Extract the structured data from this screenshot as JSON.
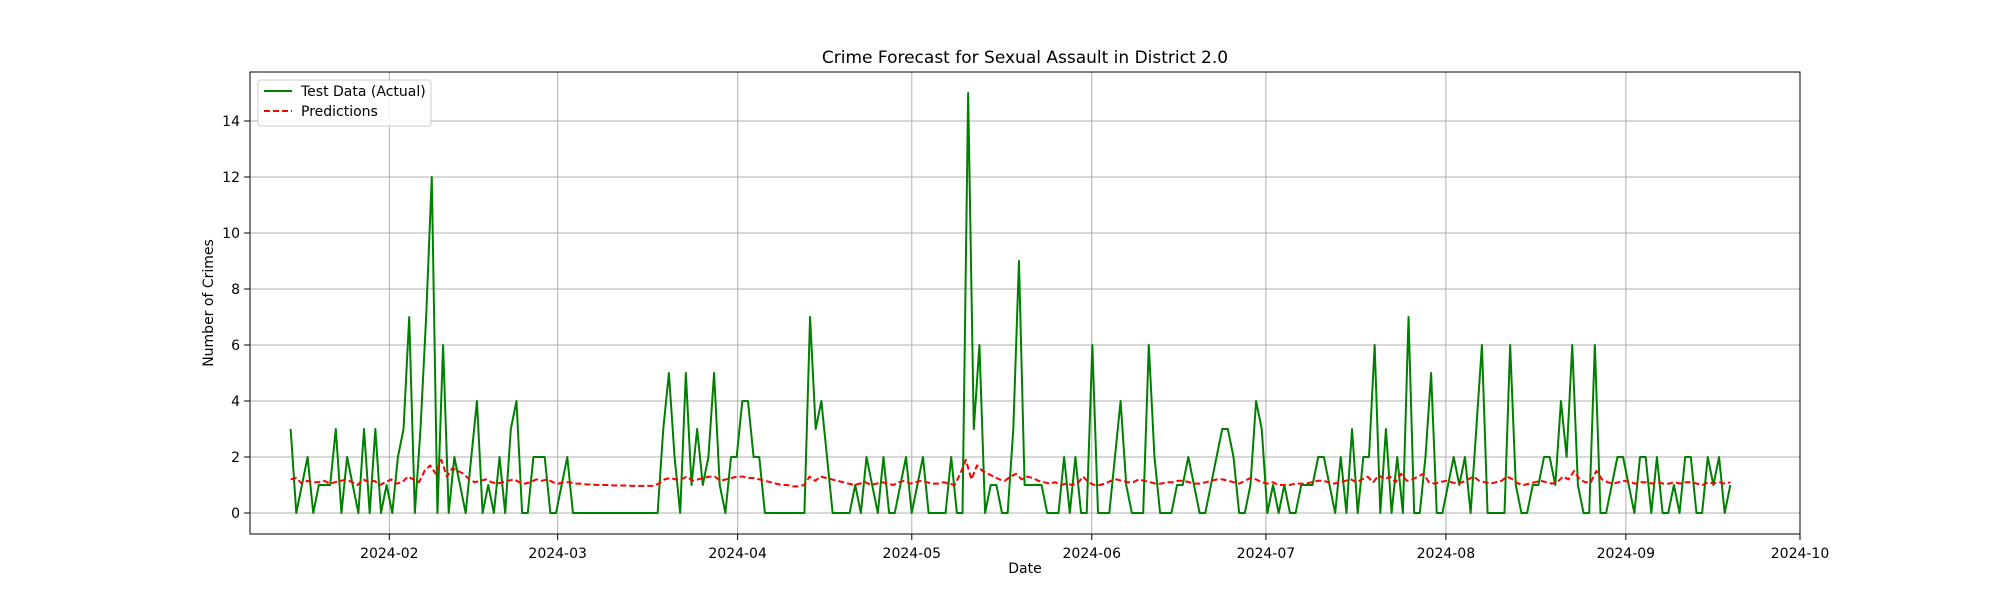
{
  "chart_data": {
    "type": "line",
    "title": "Crime Forecast for Sexual Assault in District 2.0",
    "xlabel": "Date",
    "ylabel": "Number of Crimes",
    "x_start": "2024-01-15",
    "x_end": "2024-09-19",
    "xlim": [
      "2024-01-08",
      "2024-10-01"
    ],
    "ylim": [
      -0.75,
      15.75
    ],
    "x_ticks": [
      "2024-02",
      "2024-03",
      "2024-04",
      "2024-05",
      "2024-06",
      "2024-07",
      "2024-08",
      "2024-09",
      "2024-10"
    ],
    "x_tick_dates": [
      "2024-02-01",
      "2024-03-01",
      "2024-04-01",
      "2024-05-01",
      "2024-06-01",
      "2024-07-01",
      "2024-08-01",
      "2024-09-01",
      "2024-10-01"
    ],
    "y_ticks": [
      0,
      2,
      4,
      6,
      8,
      10,
      12,
      14
    ],
    "grid": true,
    "legend_position": "top-left",
    "series": [
      {
        "name": "Test Data (Actual)",
        "color": "#008000",
        "style": "solid",
        "values": [
          3,
          0,
          1,
          2,
          0,
          1,
          1,
          1,
          3,
          0,
          2,
          1,
          0,
          3,
          0,
          3,
          0,
          1,
          0,
          2,
          3,
          7,
          0,
          3,
          7,
          12,
          0,
          6,
          0,
          2,
          1,
          0,
          2,
          4,
          0,
          1,
          0,
          2,
          0,
          3,
          4,
          0,
          0,
          2,
          2,
          2,
          0,
          0,
          1,
          2,
          0,
          0,
          0,
          0,
          0,
          0,
          0,
          0,
          0,
          0,
          0,
          0,
          0,
          0,
          0,
          0,
          3,
          5,
          2,
          0,
          5,
          1,
          3,
          1,
          2,
          5,
          1,
          0,
          2,
          2,
          4,
          4,
          2,
          2,
          0,
          0,
          0,
          0,
          0,
          0,
          0,
          0,
          7,
          3,
          4,
          2,
          0,
          0,
          0,
          0,
          1,
          0,
          2,
          1,
          0,
          2,
          0,
          0,
          1,
          2,
          0,
          1,
          2,
          0,
          0,
          0,
          0,
          2,
          0,
          0,
          15,
          3,
          6,
          0,
          1,
          1,
          0,
          0,
          3,
          9,
          1,
          1,
          1,
          1,
          0,
          0,
          0,
          2,
          0,
          2,
          0,
          0,
          6,
          0,
          0,
          0,
          2,
          4,
          1,
          0,
          0,
          0,
          6,
          2,
          0,
          0,
          0,
          1,
          1,
          2,
          1,
          0,
          0,
          1,
          2,
          3,
          3,
          2,
          0,
          0,
          1,
          4,
          3,
          0,
          1,
          0,
          1,
          0,
          0,
          1,
          1,
          1,
          2,
          2,
          1,
          0,
          2,
          0,
          3,
          0,
          2,
          2,
          6,
          0,
          3,
          0,
          2,
          0,
          7,
          0,
          0,
          2,
          5,
          0,
          0,
          1,
          2,
          1,
          2,
          0,
          3,
          6,
          0,
          0,
          0,
          0,
          6,
          1,
          0,
          0,
          1,
          1,
          2,
          2,
          1,
          4,
          2,
          6,
          1,
          0,
          0,
          6,
          0,
          0,
          1,
          2,
          2,
          1,
          0,
          2,
          2,
          0,
          2,
          0,
          0,
          1,
          0,
          2,
          2,
          0,
          0,
          2,
          1,
          2,
          0,
          1
        ],
        "predictions_note": ""
      },
      {
        "name": "Predictions",
        "color": "#ff0000",
        "style": "dashed",
        "values": [
          1.2,
          1.25,
          1.05,
          1.15,
          1.1,
          1.1,
          1.15,
          1.05,
          1.1,
          1.15,
          1.2,
          1.1,
          1.0,
          1.2,
          1.1,
          1.15,
          1.0,
          1.1,
          1.2,
          1.05,
          1.1,
          1.3,
          1.2,
          1.1,
          1.5,
          1.7,
          1.4,
          1.9,
          1.3,
          1.6,
          1.5,
          1.4,
          1.2,
          1.1,
          1.15,
          1.2,
          1.1,
          1.05,
          1.1,
          1.15,
          1.2,
          1.1,
          1.05,
          1.1,
          1.2,
          1.15,
          1.2,
          1.1,
          1.05,
          1.1,
          1.1,
          1.05,
          1.05,
          1.02,
          1.02,
          1.0,
          1.0,
          1.0,
          0.98,
          0.98,
          0.98,
          0.97,
          0.97,
          0.97,
          0.97,
          0.97,
          1.05,
          1.2,
          1.25,
          1.2,
          1.2,
          1.3,
          1.15,
          1.2,
          1.25,
          1.3,
          1.3,
          1.15,
          1.2,
          1.25,
          1.3,
          1.3,
          1.25,
          1.25,
          1.2,
          1.15,
          1.1,
          1.05,
          1.0,
          1.0,
          0.95,
          0.95,
          1.0,
          1.3,
          1.15,
          1.3,
          1.25,
          1.2,
          1.15,
          1.1,
          1.05,
          1.0,
          1.05,
          1.1,
          1.0,
          1.05,
          1.1,
          1.05,
          1.0,
          1.1,
          1.15,
          1.05,
          1.1,
          1.15,
          1.1,
          1.05,
          1.05,
          1.1,
          1.05,
          1.0,
          1.4,
          1.9,
          1.2,
          1.7,
          1.5,
          1.4,
          1.3,
          1.2,
          1.15,
          1.3,
          1.4,
          1.2,
          1.3,
          1.25,
          1.15,
          1.1,
          1.05,
          1.1,
          1.0,
          1.05,
          1.0,
          1.05,
          1.3,
          1.1,
          1.0,
          1.0,
          1.05,
          1.15,
          1.2,
          1.15,
          1.1,
          1.1,
          1.2,
          1.15,
          1.1,
          1.05,
          1.05,
          1.1,
          1.1,
          1.15,
          1.15,
          1.1,
          1.05,
          1.05,
          1.1,
          1.15,
          1.2,
          1.2,
          1.15,
          1.1,
          1.05,
          1.15,
          1.25,
          1.2,
          1.1,
          1.05,
          1.1,
          1.0,
          1.0,
          1.0,
          1.05,
          1.05,
          1.05,
          1.1,
          1.15,
          1.15,
          1.1,
          1.05,
          1.1,
          1.15,
          1.2,
          1.1,
          1.2,
          1.3,
          1.1,
          1.35,
          1.2,
          1.3,
          1.1,
          1.4,
          1.15,
          1.2,
          1.3,
          1.4,
          1.1,
          1.05,
          1.1,
          1.15,
          1.1,
          1.05,
          1.1,
          1.2,
          1.3,
          1.15,
          1.1,
          1.05,
          1.1,
          1.15,
          1.3,
          1.2,
          1.05,
          1.0,
          1.05,
          1.1,
          1.15,
          1.1,
          1.05,
          1.1,
          1.3,
          1.2,
          1.5,
          1.2,
          1.1,
          1.1,
          1.5,
          1.2,
          1.1,
          1.05,
          1.1,
          1.15,
          1.1,
          1.05,
          1.1,
          1.1,
          1.05,
          1.1,
          1.05,
          1.05,
          1.1,
          1.05,
          1.1,
          1.1,
          1.05,
          1.0,
          1.1,
          1.05,
          1.1,
          1.05,
          1.1
        ]
      }
    ]
  }
}
